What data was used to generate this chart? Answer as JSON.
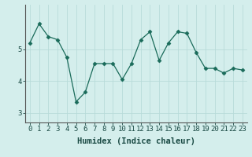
{
  "x": [
    0,
    1,
    2,
    3,
    4,
    5,
    6,
    7,
    8,
    9,
    10,
    11,
    12,
    13,
    14,
    15,
    16,
    17,
    18,
    19,
    20,
    21,
    22,
    23
  ],
  "y": [
    5.2,
    5.8,
    5.4,
    5.3,
    4.75,
    3.35,
    3.65,
    4.55,
    4.55,
    4.55,
    4.05,
    4.55,
    5.3,
    5.55,
    4.65,
    5.2,
    5.55,
    5.5,
    4.9,
    4.4,
    4.4,
    4.25,
    4.4,
    4.35
  ],
  "line_color": "#1a6b5a",
  "marker": "D",
  "marker_size": 2.5,
  "bg_color": "#d4eeec",
  "grid_color": "#b8dbd9",
  "xlabel": "Humidex (Indice chaleur)",
  "ylim": [
    2.7,
    6.4
  ],
  "xlim": [
    -0.5,
    23.5
  ],
  "yticks": [
    3,
    4,
    5
  ],
  "xtick_labels": [
    "0",
    "1",
    "2",
    "3",
    "4",
    "5",
    "6",
    "7",
    "8",
    "9",
    "10",
    "11",
    "12",
    "13",
    "14",
    "15",
    "16",
    "17",
    "18",
    "19",
    "20",
    "21",
    "22",
    "23"
  ],
  "xlabel_fontsize": 7.5,
  "tick_fontsize": 6.5,
  "linewidth": 0.9
}
